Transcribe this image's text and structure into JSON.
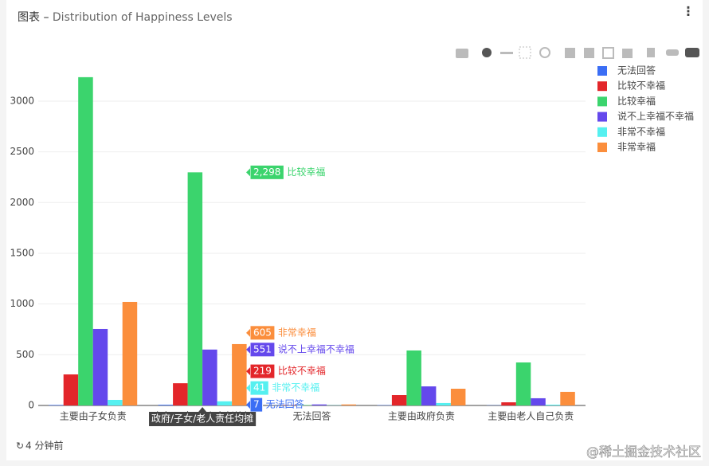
{
  "header": {
    "label": "图表",
    "menu": "⋮"
  },
  "chart_data": {
    "type": "bar",
    "title": "Distribution of Happiness Levels",
    "categories": [
      "主要由子女负责",
      "政府/子女/老人责任均摊",
      "无法回答",
      "主要由政府负责",
      "主要由老人自己负责"
    ],
    "series": [
      {
        "name": "无法回答",
        "color": "#3b6ef5",
        "values": [
          5,
          7,
          2,
          3,
          2
        ],
        "value_labels": [
          null,
          "7",
          null,
          null,
          null
        ]
      },
      {
        "name": "比较不幸福",
        "color": "#e3262a",
        "values": [
          306,
          219,
          3,
          102,
          31
        ],
        "value_labels": [
          null,
          "219",
          null,
          null,
          null
        ]
      },
      {
        "name": "比较幸福",
        "color": "#3bd46d",
        "values": [
          3236,
          2298,
          4,
          542,
          424
        ],
        "value_labels": [
          null,
          "2,298",
          null,
          null,
          null
        ]
      },
      {
        "name": "说不上幸福不幸福",
        "color": "#6448ec",
        "values": [
          754,
          551,
          10,
          188,
          71
        ],
        "value_labels": [
          null,
          "551",
          null,
          null,
          null
        ]
      },
      {
        "name": "非常不幸福",
        "color": "#55f0f0",
        "values": [
          55,
          41,
          2,
          24,
          8
        ],
        "value_labels": [
          null,
          "41",
          null,
          null,
          null
        ]
      },
      {
        "name": "非常幸福",
        "color": "#fb8e3c",
        "values": [
          1021,
          605,
          10,
          165,
          134
        ],
        "value_labels": [
          null,
          "605",
          null,
          null,
          null
        ]
      }
    ],
    "hover_category": 1,
    "ylim": [
      0,
      3400
    ],
    "yticks": [
      0,
      500,
      1000,
      1500,
      2000,
      2500,
      3000
    ],
    "grid": true,
    "legend": "right"
  },
  "footer": {
    "time": "4 分钟前",
    "watermark": "@稀土掘金技术社区"
  }
}
